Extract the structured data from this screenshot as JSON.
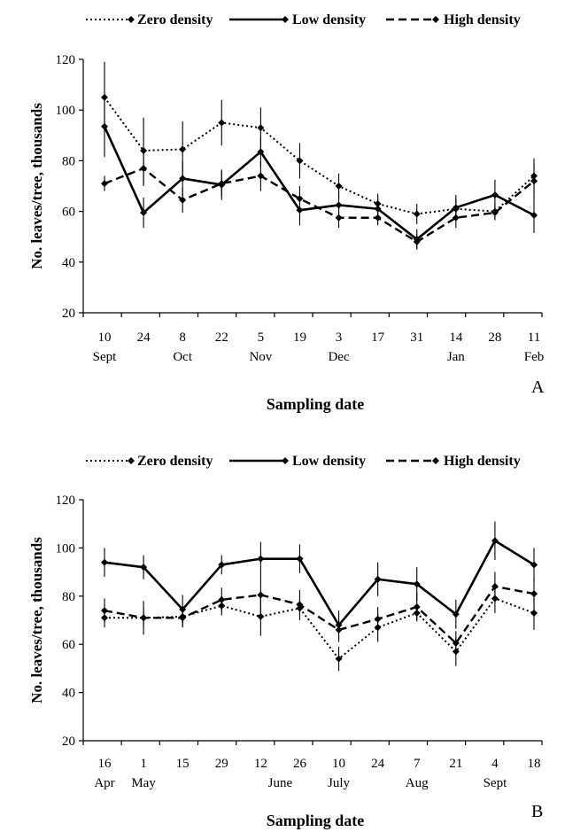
{
  "legend": [
    {
      "name": "Zero density",
      "style": "dotted"
    },
    {
      "name": "Low density",
      "style": "solid"
    },
    {
      "name": "High density",
      "style": "dashed"
    }
  ],
  "chart_data": [
    {
      "type": "line",
      "panel_label": "A",
      "xlabel": "Sampling date",
      "ylabel": "No. leaves/tree, thousands",
      "ylim": [
        20,
        120
      ],
      "yticks": [
        20,
        40,
        60,
        80,
        100,
        120
      ],
      "categories": [
        "10",
        "24",
        "8",
        "22",
        "5",
        "19",
        "3",
        "17",
        "31",
        "14",
        "28",
        "11"
      ],
      "month_labels": [
        {
          "label": "Sept",
          "index": 0
        },
        {
          "label": "Oct",
          "index": 2
        },
        {
          "label": "Nov",
          "index": 4
        },
        {
          "label": "Dec",
          "index": 6
        },
        {
          "label": "Jan",
          "index": 9
        },
        {
          "label": "Feb",
          "index": 11
        }
      ],
      "grid": false,
      "legend_position": "top",
      "series": [
        {
          "name": "Zero density",
          "values": [
            105,
            84,
            84.5,
            95,
            93,
            80,
            70,
            63,
            59,
            61,
            60,
            74
          ],
          "errors": [
            14,
            13,
            11,
            9,
            8,
            7,
            5,
            4,
            4,
            4,
            3,
            7
          ]
        },
        {
          "name": "Low density",
          "values": [
            93.5,
            59.5,
            73,
            70.5,
            83.5,
            60.5,
            62.5,
            61,
            49,
            61.5,
            66.5,
            58.5
          ],
          "errors": [
            12,
            6,
            7,
            6,
            6,
            6,
            5,
            4,
            4,
            5,
            6,
            7
          ]
        },
        {
          "name": "High density",
          "values": [
            71,
            77,
            64.5,
            71,
            74,
            65,
            57.5,
            57.5,
            48,
            57.5,
            59.5,
            72
          ],
          "errors": [
            3,
            7,
            5,
            5,
            6,
            5,
            4,
            3,
            3,
            4,
            3,
            7
          ]
        }
      ]
    },
    {
      "type": "line",
      "panel_label": "B",
      "xlabel": "Sampling date",
      "ylabel": "No. leaves/tree, thousands",
      "ylim": [
        20,
        120
      ],
      "yticks": [
        20,
        40,
        60,
        80,
        100,
        120
      ],
      "categories": [
        "16",
        "1",
        "15",
        "29",
        "12",
        "26",
        "10",
        "24",
        "7",
        "21",
        "4",
        "18"
      ],
      "month_labels": [
        {
          "label": "Apr",
          "index": 0
        },
        {
          "label": "May",
          "index": 1
        },
        {
          "label": "June",
          "index": 4.5
        },
        {
          "label": "July",
          "index": 6
        },
        {
          "label": "Aug",
          "index": 8
        },
        {
          "label": "Sept",
          "index": 10
        }
      ],
      "grid": false,
      "legend_position": "top",
      "series": [
        {
          "name": "Zero density",
          "values": [
            71,
            71,
            71.5,
            76,
            71.5,
            75,
            54,
            67,
            73,
            57,
            79,
            73
          ],
          "errors": [
            4,
            4,
            4,
            4,
            8,
            5,
            5,
            6,
            3,
            6,
            6,
            7
          ]
        },
        {
          "name": "Low density",
          "values": [
            94,
            92,
            74.5,
            93,
            95.5,
            95.5,
            68,
            87,
            85,
            72.5,
            103,
            93
          ],
          "errors": [
            6,
            5,
            6,
            4,
            7,
            6,
            6,
            7,
            7,
            6,
            8,
            7
          ]
        },
        {
          "name": "High density",
          "values": [
            74,
            71,
            71,
            78.5,
            80.5,
            76.5,
            66,
            70.5,
            75.5,
            60.5,
            84,
            81
          ],
          "errors": [
            5,
            7,
            4,
            5,
            8,
            6,
            5,
            5,
            6,
            5,
            6,
            7
          ]
        }
      ]
    }
  ]
}
